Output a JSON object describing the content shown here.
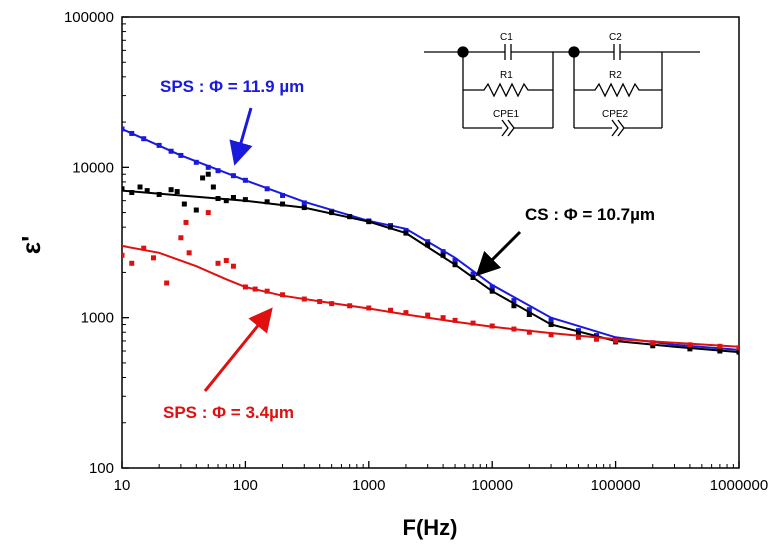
{
  "chart_data": {
    "type": "scatter",
    "title": "",
    "xlabel": "F(Hz)",
    "ylabel": "ε'",
    "xscale": "log",
    "yscale": "log",
    "xlim": [
      10,
      1000000
    ],
    "ylim": [
      100,
      100000
    ],
    "grid": false,
    "x_ticks": [
      "10",
      "100",
      "1000",
      "10000",
      "100000",
      "1000000"
    ],
    "y_ticks": [
      "100",
      "1000",
      "10000",
      "100000"
    ],
    "colors": {
      "blue": "#1a1adc",
      "black": "#000000",
      "red": "#e01010"
    },
    "annotations": [
      {
        "text": "SPS : Φ = 11.9 µm",
        "color": "#1a1adc"
      },
      {
        "text": "CS : Φ = 10.7µm",
        "color": "#000000"
      },
      {
        "text": "SPS : Φ = 3.4µm",
        "color": "#e01010"
      }
    ],
    "series": [
      {
        "color": "#1a1adc",
        "points": [
          [
            10,
            18000
          ],
          [
            12,
            16800
          ],
          [
            15,
            15500
          ],
          [
            20,
            14000
          ],
          [
            25,
            12800
          ],
          [
            30,
            12000
          ],
          [
            40,
            10800
          ],
          [
            50,
            10000
          ],
          [
            60,
            9500
          ],
          [
            80,
            8800
          ],
          [
            100,
            8200
          ],
          [
            150,
            7200
          ],
          [
            200,
            6500
          ],
          [
            300,
            5800
          ],
          [
            500,
            5100
          ],
          [
            700,
            4700
          ],
          [
            1000,
            4400
          ],
          [
            1500,
            4100
          ],
          [
            2000,
            3800
          ],
          [
            3000,
            3200
          ],
          [
            4000,
            2750
          ],
          [
            5000,
            2400
          ],
          [
            7000,
            1950
          ],
          [
            10000,
            1600
          ],
          [
            15000,
            1300
          ],
          [
            20000,
            1130
          ],
          [
            30000,
            960
          ],
          [
            50000,
            820
          ],
          [
            70000,
            760
          ],
          [
            100000,
            720
          ],
          [
            200000,
            680
          ],
          [
            400000,
            650
          ],
          [
            700000,
            620
          ],
          [
            1000000,
            600
          ]
        ],
        "fit": [
          [
            10,
            18000
          ],
          [
            30,
            12000
          ],
          [
            100,
            8200
          ],
          [
            300,
            5900
          ],
          [
            1000,
            4400
          ],
          [
            2000,
            3900
          ],
          [
            5000,
            2500
          ],
          [
            10000,
            1650
          ],
          [
            30000,
            1000
          ],
          [
            100000,
            740
          ],
          [
            300000,
            660
          ],
          [
            1000000,
            610
          ]
        ]
      },
      {
        "color": "#000000",
        "points": [
          [
            10,
            7200
          ],
          [
            12,
            6800
          ],
          [
            14,
            7400
          ],
          [
            16,
            7000
          ],
          [
            20,
            6600
          ],
          [
            25,
            7100
          ],
          [
            28,
            6900
          ],
          [
            32,
            5700
          ],
          [
            40,
            5200
          ],
          [
            45,
            8500
          ],
          [
            50,
            9000
          ],
          [
            55,
            7400
          ],
          [
            60,
            6200
          ],
          [
            70,
            6000
          ],
          [
            80,
            6300
          ],
          [
            100,
            6100
          ],
          [
            150,
            5900
          ],
          [
            200,
            5700
          ],
          [
            300,
            5400
          ],
          [
            500,
            5000
          ],
          [
            700,
            4700
          ],
          [
            1000,
            4350
          ],
          [
            1500,
            4000
          ],
          [
            2000,
            3650
          ],
          [
            3000,
            3050
          ],
          [
            4000,
            2600
          ],
          [
            5000,
            2250
          ],
          [
            7000,
            1850
          ],
          [
            10000,
            1500
          ],
          [
            15000,
            1200
          ],
          [
            20000,
            1050
          ],
          [
            30000,
            900
          ],
          [
            50000,
            780
          ],
          [
            70000,
            720
          ],
          [
            100000,
            690
          ],
          [
            200000,
            650
          ],
          [
            400000,
            620
          ],
          [
            700000,
            600
          ],
          [
            1000000,
            590
          ]
        ],
        "fit": [
          [
            10,
            7000
          ],
          [
            30,
            6500
          ],
          [
            100,
            6000
          ],
          [
            300,
            5400
          ],
          [
            1000,
            4350
          ],
          [
            2000,
            3650
          ],
          [
            5000,
            2250
          ],
          [
            10000,
            1500
          ],
          [
            30000,
            900
          ],
          [
            100000,
            700
          ],
          [
            300000,
            640
          ],
          [
            1000000,
            590
          ]
        ]
      },
      {
        "color": "#e01010",
        "points": [
          [
            10,
            2600
          ],
          [
            12,
            2300
          ],
          [
            15,
            2900
          ],
          [
            18,
            2500
          ],
          [
            23,
            1700
          ],
          [
            30,
            3400
          ],
          [
            33,
            4300
          ],
          [
            35,
            2700
          ],
          [
            50,
            5000
          ],
          [
            60,
            2300
          ],
          [
            70,
            2400
          ],
          [
            80,
            2200
          ],
          [
            100,
            1600
          ],
          [
            120,
            1550
          ],
          [
            150,
            1500
          ],
          [
            200,
            1420
          ],
          [
            300,
            1330
          ],
          [
            400,
            1280
          ],
          [
            500,
            1240
          ],
          [
            700,
            1200
          ],
          [
            1000,
            1160
          ],
          [
            1500,
            1120
          ],
          [
            2000,
            1080
          ],
          [
            3000,
            1040
          ],
          [
            4000,
            1000
          ],
          [
            5000,
            960
          ],
          [
            7000,
            920
          ],
          [
            10000,
            880
          ],
          [
            15000,
            840
          ],
          [
            20000,
            800
          ],
          [
            30000,
            770
          ],
          [
            50000,
            740
          ],
          [
            70000,
            720
          ],
          [
            100000,
            700
          ],
          [
            200000,
            680
          ],
          [
            400000,
            660
          ],
          [
            700000,
            645
          ],
          [
            1000000,
            630
          ]
        ],
        "fit": [
          [
            10,
            3000
          ],
          [
            20,
            2700
          ],
          [
            40,
            2200
          ],
          [
            70,
            1800
          ],
          [
            100,
            1600
          ],
          [
            200,
            1400
          ],
          [
            500,
            1250
          ],
          [
            1000,
            1150
          ],
          [
            2000,
            1050
          ],
          [
            5000,
            940
          ],
          [
            10000,
            870
          ],
          [
            30000,
            790
          ],
          [
            100000,
            720
          ],
          [
            300000,
            680
          ],
          [
            1000000,
            640
          ]
        ]
      }
    ]
  },
  "circuit": {
    "c1": "C1",
    "r1": "R1",
    "cpe1": "CPE1",
    "c2": "C2",
    "r2": "R2",
    "cpe2": "CPE2"
  }
}
